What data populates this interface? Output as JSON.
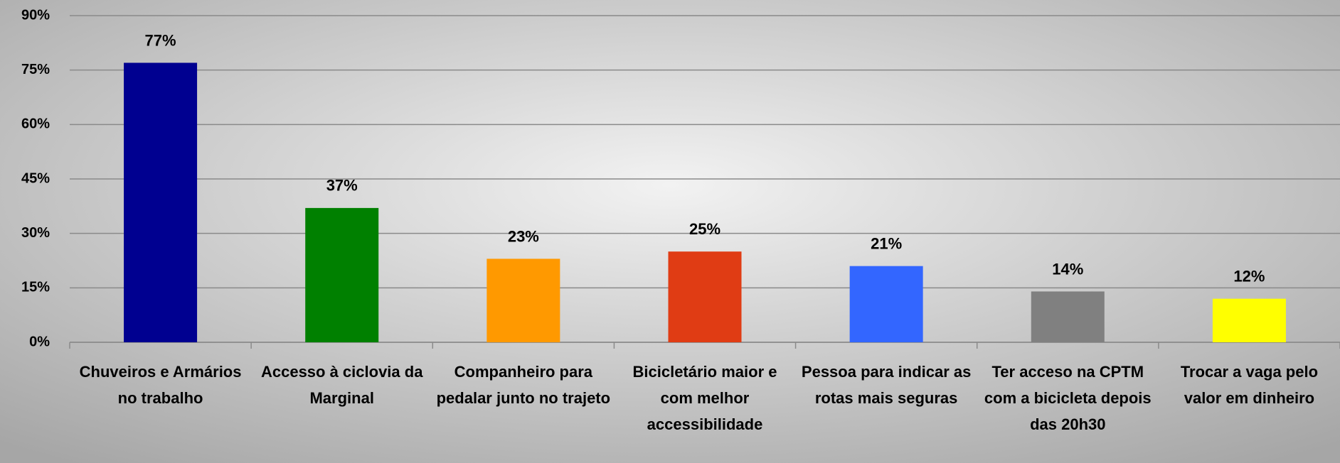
{
  "chart_data": {
    "type": "bar",
    "categories": [
      "Chuveiros e Armários no trabalho",
      "Accesso à ciclovia da Marginal",
      "Companheiro para pedalar junto no trajeto",
      "Bicicletário maior e com melhor accessibilidade",
      "Pessoa para indicar as rotas mais seguras",
      "Ter acceso na CPTM com a bicicleta depois das 20h30",
      "Trocar a vaga pelo valor em dinheiro"
    ],
    "values": [
      77,
      37,
      23,
      25,
      21,
      14,
      12
    ],
    "value_labels": [
      "77%",
      "37%",
      "23%",
      "25%",
      "21%",
      "14%",
      "12%"
    ],
    "colors": [
      "#000090",
      "#008000",
      "#ff9900",
      "#e03c14",
      "#3366ff",
      "#808080",
      "#ffff00"
    ],
    "ylim": [
      0,
      90
    ],
    "yticks": [
      {
        "value": 0,
        "label": "0%"
      },
      {
        "value": 15,
        "label": "15%"
      },
      {
        "value": 30,
        "label": "30%"
      },
      {
        "value": 45,
        "label": "45%"
      },
      {
        "value": 60,
        "label": "60%"
      },
      {
        "value": 75,
        "label": "75%"
      },
      {
        "value": 90,
        "label": "90%"
      }
    ],
    "grid": true
  }
}
